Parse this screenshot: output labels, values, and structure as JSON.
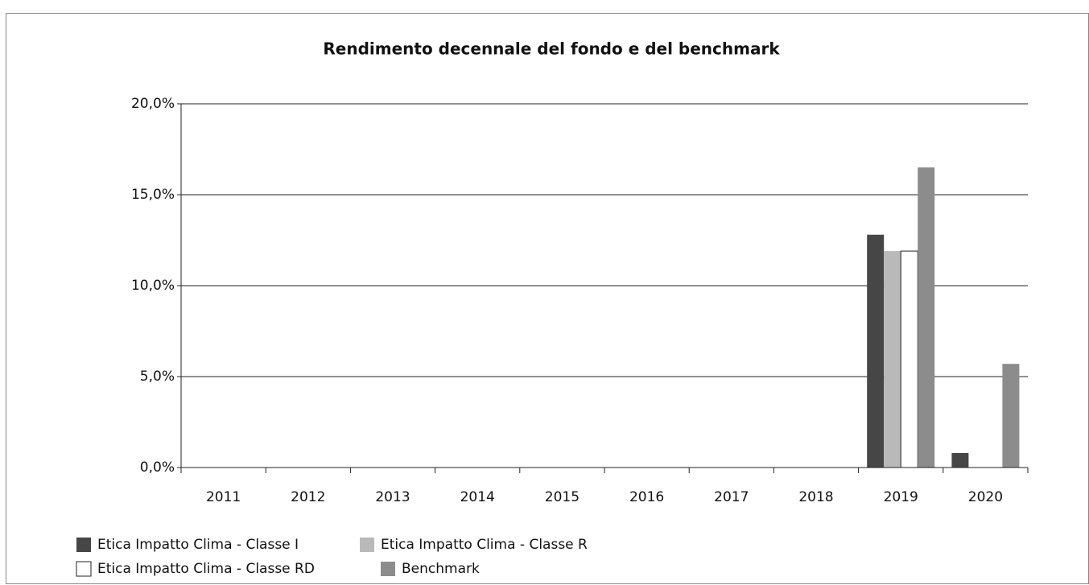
{
  "chart_data": {
    "type": "bar",
    "title": "Rendimento decennale del fondo e del benchmark",
    "categories": [
      "2011",
      "2012",
      "2013",
      "2014",
      "2015",
      "2016",
      "2017",
      "2018",
      "2019",
      "2020"
    ],
    "series": [
      {
        "name": "Etica Impatto Clima - Classe I",
        "color": "#464646",
        "values": [
          null,
          null,
          null,
          null,
          null,
          null,
          null,
          null,
          12.8,
          0.8
        ]
      },
      {
        "name": "Etica Impatto Clima - Classe R",
        "color": "#b9b9b9",
        "values": [
          null,
          null,
          null,
          null,
          null,
          null,
          null,
          null,
          11.9,
          0
        ]
      },
      {
        "name": "Etica Impatto Clima - Classe RD",
        "color": "#ffffff",
        "values": [
          null,
          null,
          null,
          null,
          null,
          null,
          null,
          null,
          11.9,
          0
        ]
      },
      {
        "name": "Benchmark",
        "color": "#8c8c8c",
        "values": [
          null,
          null,
          null,
          null,
          null,
          null,
          null,
          null,
          16.5,
          5.7
        ]
      }
    ],
    "ylim": [
      0,
      20
    ],
    "yticks": [
      {
        "value": 0,
        "label": "0,0%"
      },
      {
        "value": 5,
        "label": "5,0%"
      },
      {
        "value": 10,
        "label": "10,0%"
      },
      {
        "value": 15,
        "label": "15,0%"
      },
      {
        "value": 20,
        "label": "20,0%"
      }
    ],
    "grid": true,
    "legend": "bottom"
  }
}
